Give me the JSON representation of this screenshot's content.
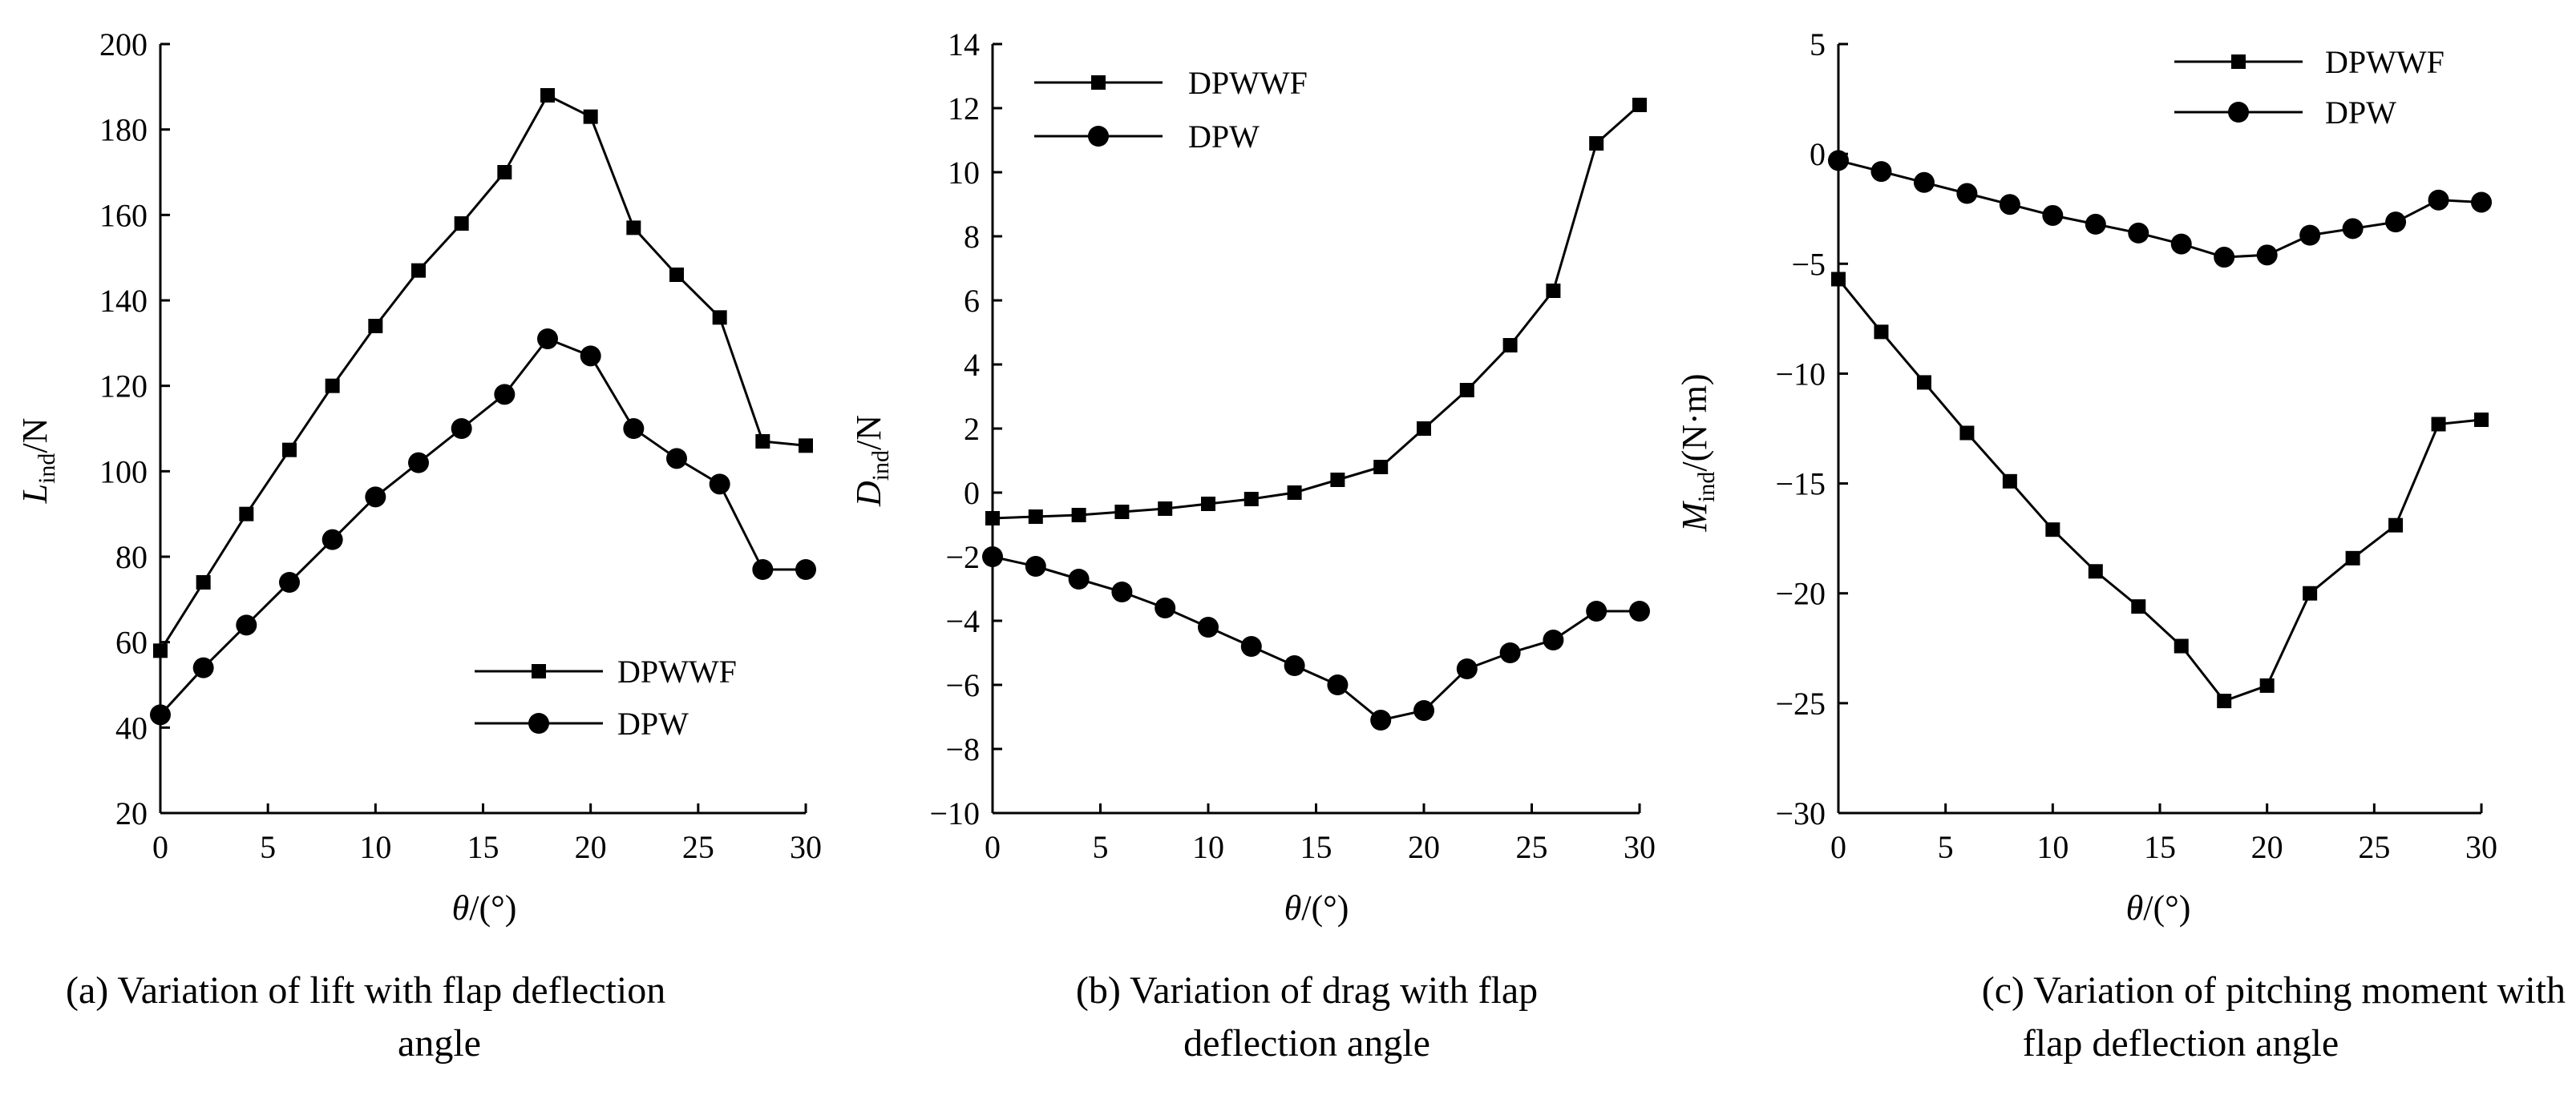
{
  "chart_data": [
    {
      "type": "line",
      "id": "lift",
      "x": [
        0,
        2,
        4,
        6,
        8,
        10,
        12,
        14,
        16,
        18,
        20,
        22,
        24,
        26,
        28,
        30
      ],
      "series": [
        {
          "name": "DPWWF",
          "marker": "square",
          "values": [
            58,
            74,
            90,
            105,
            120,
            134,
            147,
            158,
            170,
            188,
            183,
            157,
            146,
            136,
            107,
            106
          ]
        },
        {
          "name": "DPW",
          "marker": "circle",
          "values": [
            43,
            54,
            64,
            74,
            84,
            94,
            102,
            110,
            118,
            131,
            127,
            110,
            103,
            97,
            77,
            77
          ]
        }
      ],
      "xlim": [
        0,
        30
      ],
      "ylim": [
        20,
        200
      ],
      "xticks": [
        0,
        5,
        10,
        15,
        20,
        25,
        30
      ],
      "yticks": [
        20,
        40,
        60,
        80,
        100,
        120,
        140,
        160,
        180,
        200
      ],
      "ylabel_main": "L",
      "ylabel_sub": "ind",
      "ylabel_unit": "/N",
      "xlabel_main": "θ",
      "xlabel_unit": "/(°)",
      "legend_position": "bottom-right",
      "caption_line1": "(a) Variation of lift with flap deflection",
      "caption_line2": "angle"
    },
    {
      "type": "line",
      "id": "drag",
      "x": [
        0,
        2,
        4,
        6,
        8,
        10,
        12,
        14,
        16,
        18,
        20,
        22,
        24,
        26,
        28,
        30
      ],
      "series": [
        {
          "name": "DPWWF",
          "marker": "square",
          "values": [
            -0.8,
            -0.75,
            -0.7,
            -0.6,
            -0.5,
            -0.35,
            -0.2,
            0.0,
            0.4,
            0.8,
            2.0,
            3.2,
            4.6,
            6.3,
            10.9,
            12.1
          ]
        },
        {
          "name": "DPW",
          "marker": "circle",
          "values": [
            -2.0,
            -2.3,
            -2.7,
            -3.1,
            -3.6,
            -4.2,
            -4.8,
            -5.4,
            -6.0,
            -7.1,
            -6.8,
            -5.5,
            -5.0,
            -4.6,
            -3.7,
            -3.7
          ]
        }
      ],
      "xlim": [
        0,
        30
      ],
      "ylim": [
        -10,
        14
      ],
      "xticks": [
        0,
        5,
        10,
        15,
        20,
        25,
        30
      ],
      "yticks": [
        -10,
        -8,
        -6,
        -4,
        -2,
        0,
        2,
        4,
        6,
        8,
        10,
        12,
        14
      ],
      "ylabel_main": "D",
      "ylabel_sub": "ind",
      "ylabel_unit": "/N",
      "xlabel_main": "θ",
      "xlabel_unit": "/(°)",
      "legend_position": "top-left",
      "caption_line1": "(b) Variation of drag with flap",
      "caption_line2": "deflection angle"
    },
    {
      "type": "line",
      "id": "moment",
      "x": [
        0,
        2,
        4,
        6,
        8,
        10,
        12,
        14,
        16,
        18,
        20,
        22,
        24,
        26,
        28,
        30
      ],
      "series": [
        {
          "name": "DPWWF",
          "marker": "square",
          "values": [
            -5.7,
            -8.1,
            -10.4,
            -12.7,
            -14.9,
            -17.1,
            -19.0,
            -20.6,
            -22.4,
            -24.9,
            -24.2,
            -20.0,
            -18.4,
            -16.9,
            -12.3,
            -12.1
          ]
        },
        {
          "name": "DPW",
          "marker": "circle",
          "values": [
            -0.3,
            -0.8,
            -1.3,
            -1.8,
            -2.3,
            -2.8,
            -3.2,
            -3.6,
            -4.1,
            -4.7,
            -4.6,
            -3.7,
            -3.4,
            -3.1,
            -2.1,
            -2.2
          ]
        }
      ],
      "xlim": [
        0,
        30
      ],
      "ylim": [
        -30,
        5
      ],
      "xticks": [
        0,
        5,
        10,
        15,
        20,
        25,
        30
      ],
      "yticks": [
        -30,
        -25,
        -20,
        -15,
        -10,
        -5,
        0,
        5
      ],
      "ylabel_main": "M",
      "ylabel_sub": "ind",
      "ylabel_unit": "/(N·m)",
      "xlabel_main": "θ",
      "xlabel_unit": "/(°)",
      "legend_position": "top-right",
      "caption_line1": "(c) Variation of pitching moment with",
      "caption_line2": "flap deflection angle"
    }
  ]
}
